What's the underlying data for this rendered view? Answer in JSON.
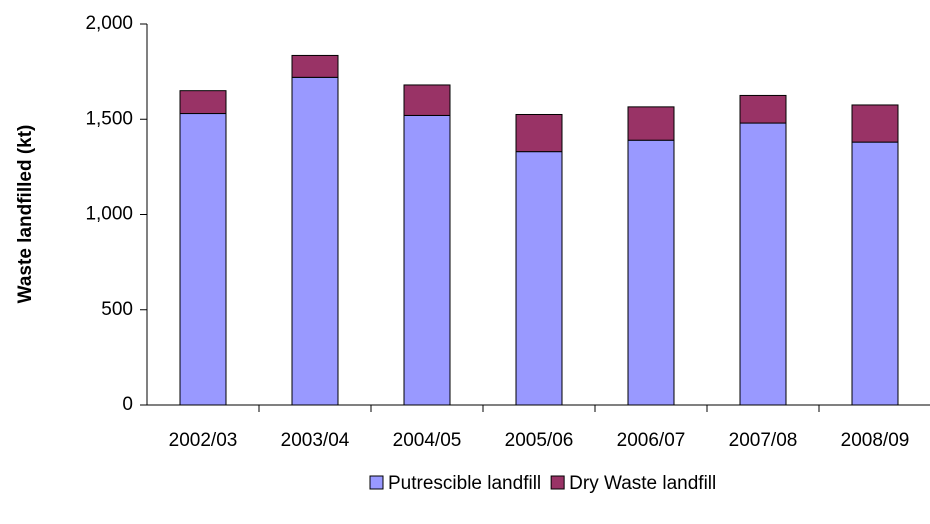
{
  "chart_data": {
    "type": "stacked_bar",
    "y_label": "Waste landfilled (kt)",
    "categories": [
      "2002/03",
      "2003/04",
      "2004/05",
      "2005/06",
      "2006/07",
      "2007/08",
      "2008/09"
    ],
    "series": [
      {
        "name": "Putrescible landfill",
        "color": "#9999ff",
        "values": [
          1530,
          1720,
          1520,
          1330,
          1390,
          1480,
          1380
        ]
      },
      {
        "name": "Dry Waste landfill",
        "color": "#993366",
        "values": [
          120,
          115,
          160,
          195,
          175,
          145,
          195
        ]
      }
    ],
    "ylim": [
      0,
      2000
    ],
    "yticks": [
      0,
      500,
      {
        "value": 1000,
        "label": "1,000"
      },
      {
        "value": 1500,
        "label": "1,500"
      },
      {
        "value": 2000,
        "label": "2,000"
      }
    ],
    "grid": false,
    "legend": "bottom"
  }
}
